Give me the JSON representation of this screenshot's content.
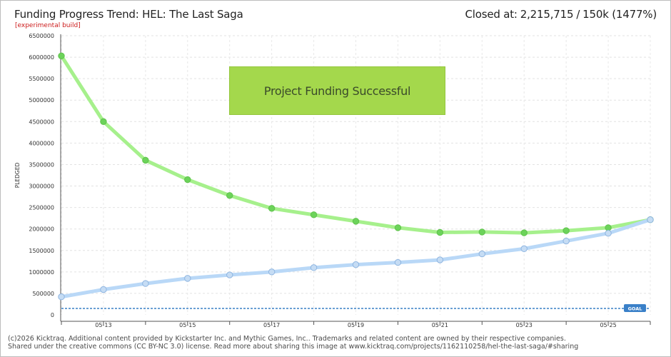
{
  "header": {
    "title": "Funding Progress Trend: HEL: The Last Saga",
    "subtitle": "[experimental build]",
    "closed_label": "Closed at:",
    "closed_amount": "2,215,715",
    "closed_sep": "/",
    "closed_goal": "150k (1477%)"
  },
  "banner": {
    "text": "Project Funding Successful",
    "color": "#a4d84c"
  },
  "footer": {
    "line1": "(c)2026 Kicktraq. Additional content provided by Kickstarter Inc. and Mythic Games, Inc.. Trademarks and related content are owned by their respective companies.",
    "line2": "Shared under the creative commons (CC BY-NC 3.0) license. Read more about sharing this image at www.kicktraq.com/projects/1162110258/hel-the-last-saga/#sharing"
  },
  "chart_data": {
    "type": "line",
    "ylabel": "PLEDGED",
    "ylim": [
      0,
      6500000
    ],
    "yticks": [
      0,
      500000,
      1000000,
      1500000,
      2000000,
      2500000,
      3000000,
      3500000,
      4000000,
      4500000,
      5000000,
      5500000,
      6000000,
      6500000
    ],
    "x_ticklabels": [
      "05-13",
      "05-15",
      "05-17",
      "05-19",
      "05-21",
      "05-23",
      "05-25"
    ],
    "x_ticklabel_index": [
      1,
      3,
      5,
      7,
      9,
      11,
      13
    ],
    "n_points": 15,
    "goal": 150000,
    "goal_label": "GOAL",
    "grid": true,
    "series": [
      {
        "role": "projection",
        "color": "#a6f08c",
        "marker": "#6cd35a",
        "values": [
          6030000,
          4500000,
          3600000,
          3150000,
          2780000,
          2480000,
          2330000,
          2180000,
          2030000,
          1920000,
          1930000,
          1910000,
          1960000,
          2030000,
          2215715
        ]
      },
      {
        "role": "pledged",
        "color": "#b9d8f7",
        "marker": "#c5dcf4",
        "values": [
          420000,
          590000,
          730000,
          850000,
          930000,
          1000000,
          1100000,
          1170000,
          1220000,
          1280000,
          1420000,
          1540000,
          1720000,
          1900000,
          2215715
        ]
      }
    ]
  }
}
